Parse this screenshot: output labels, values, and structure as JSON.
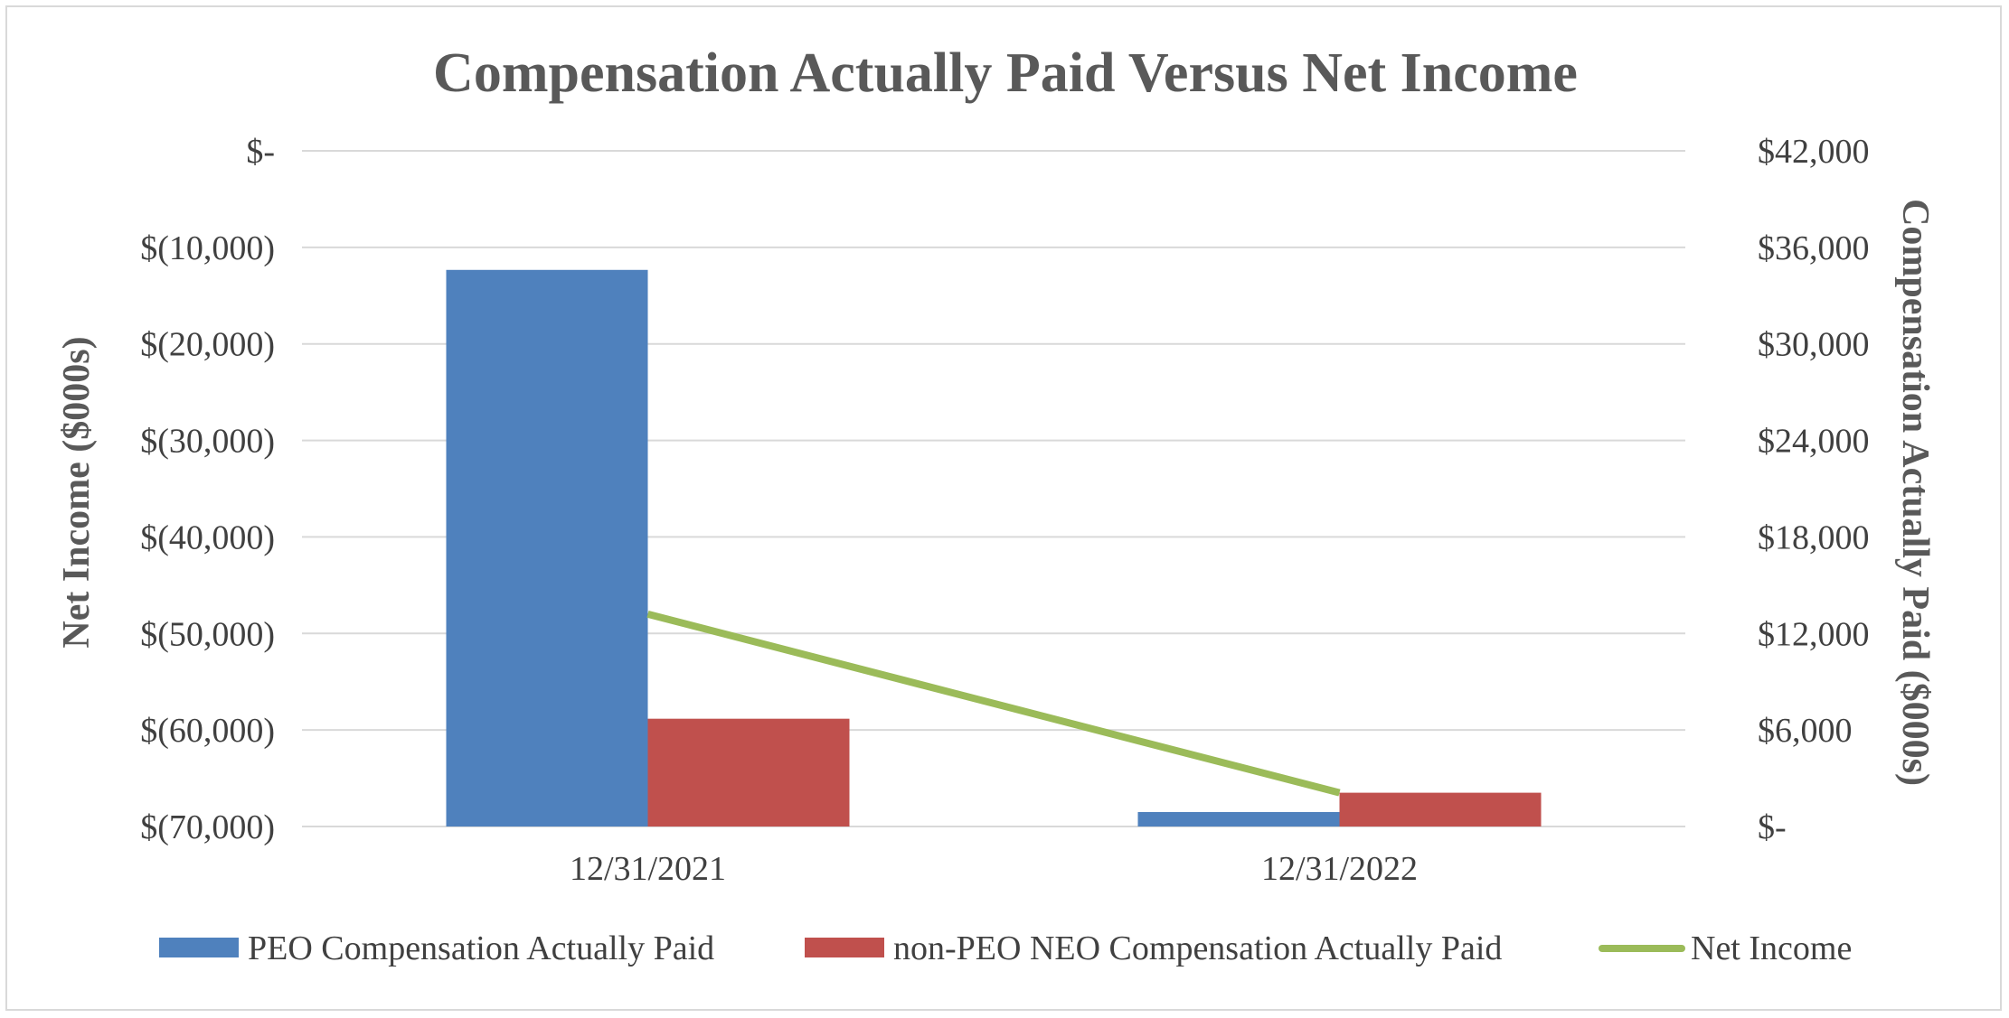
{
  "chart_data": {
    "type": "bar",
    "title": "Compensation Actually Paid Versus Net Income",
    "categories": [
      "12/31/2021",
      "12/31/2022"
    ],
    "series": [
      {
        "name": "PEO Compensation Actually Paid",
        "kind": "bar",
        "axis": "right",
        "color": "#4f81bd",
        "values": [
          34600,
          900
        ]
      },
      {
        "name": "non-PEO NEO Compensation Actually Paid",
        "kind": "bar",
        "axis": "right",
        "color": "#c0504d",
        "values": [
          6700,
          2100
        ]
      },
      {
        "name": "Net Income",
        "kind": "line",
        "axis": "left",
        "color": "#9bbb59",
        "values": [
          -48000,
          -66500
        ]
      }
    ],
    "y_left": {
      "label": "Net Income ($000s)",
      "range": [
        -70000,
        0
      ],
      "ticks": [
        0,
        -10000,
        -20000,
        -30000,
        -40000,
        -50000,
        -60000,
        -70000
      ],
      "tick_labels": [
        "$-",
        "$(10,000)",
        "$(20,000)",
        "$(30,000)",
        "$(40,000)",
        "$(50,000)",
        "$(60,000)",
        "$(70,000)"
      ]
    },
    "y_right": {
      "label": "Compensation Actually Paid ($000s)",
      "range": [
        0,
        42000
      ],
      "ticks": [
        42000,
        36000,
        30000,
        24000,
        18000,
        12000,
        6000,
        0
      ],
      "tick_labels": [
        "$42,000",
        "$36,000",
        "$30,000",
        "$24,000",
        "$18,000",
        "$12,000",
        "$6,000",
        "$-"
      ]
    },
    "grid": true,
    "legend_position": "bottom"
  }
}
